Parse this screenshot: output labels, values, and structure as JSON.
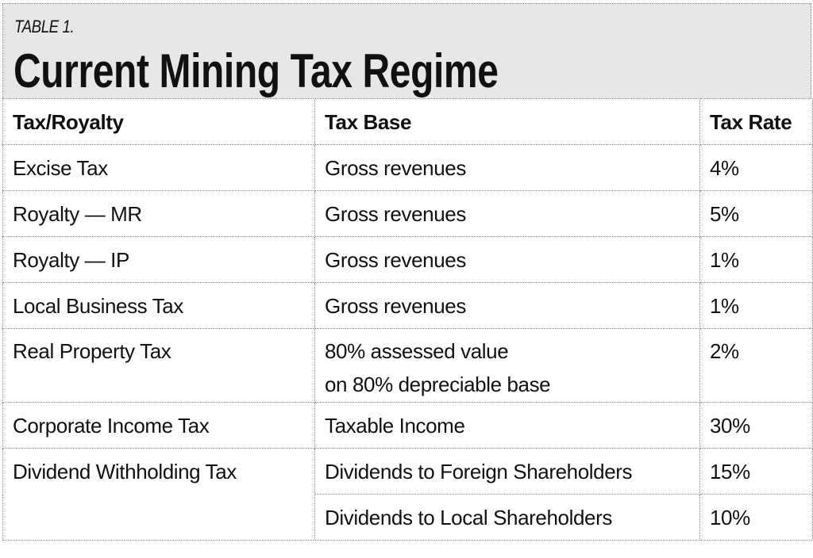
{
  "header": {
    "label": "TABLE 1.",
    "title": "Current Mining Tax Regime",
    "background": "#e6e7e8"
  },
  "columns": [
    "Tax/Royalty",
    "Tax Base",
    "Tax Rate"
  ],
  "rows": [
    {
      "tax": "Excise Tax",
      "base": "Gross revenues",
      "rate": "4%"
    },
    {
      "tax": "Royalty — MR",
      "base": "Gross revenues",
      "rate": "5%"
    },
    {
      "tax": "Royalty — IP",
      "base": "Gross revenues",
      "rate": "1%"
    },
    {
      "tax": "Local Business Tax",
      "base": "Gross revenues",
      "rate": "1%"
    },
    {
      "tax": "Real Property Tax",
      "base": "80% assessed value",
      "base_line2": "on 80% depreciable base",
      "rate": "2%"
    },
    {
      "tax": "Corporate Income Tax",
      "base": "Taxable Income",
      "rate": "30%"
    },
    {
      "tax": "Dividend Withholding Tax",
      "base": "Dividends to Foreign Shareholders",
      "rate": "15%"
    },
    {
      "base": "Dividends to Local Shareholders",
      "rate": "10%"
    }
  ]
}
